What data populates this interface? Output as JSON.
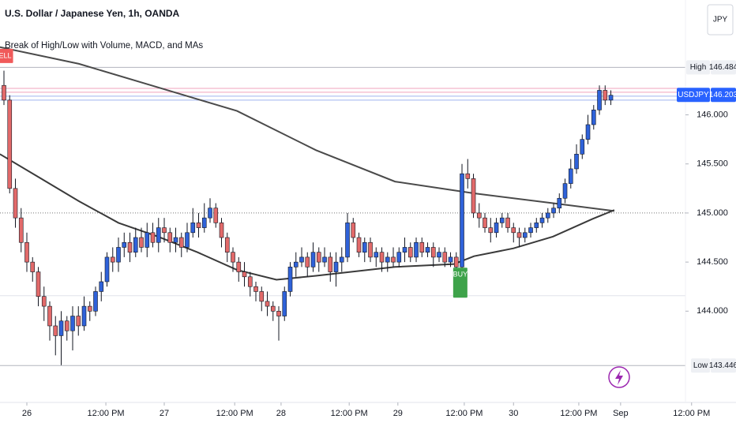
{
  "chart_data": {
    "type": "candlestick",
    "title": "U.S. Dollar / Japanese Yen, 1h, OANDA",
    "subtitle": "Break of High/Low with Volume, MACD, and MAs",
    "currency": "JPY",
    "up_color": "#2f62d9",
    "down_color": "#e26a6a",
    "x": [
      -4,
      -3,
      -2,
      -1,
      0,
      1,
      2,
      3,
      4,
      5,
      6,
      7,
      8,
      9,
      10,
      11,
      12,
      13,
      14,
      15,
      16,
      17,
      18,
      19,
      20,
      21,
      22,
      23,
      24,
      25,
      26,
      27,
      28,
      29,
      30,
      31,
      32,
      33,
      34,
      35,
      36,
      37,
      38,
      39,
      40,
      41,
      42,
      43,
      44,
      45,
      46,
      47,
      48,
      49,
      50,
      51,
      52,
      53,
      54,
      55,
      56,
      57,
      58,
      59,
      60,
      61,
      62,
      63,
      64,
      65,
      66,
      67,
      68,
      69,
      70,
      71,
      72,
      73,
      74,
      75,
      76,
      77,
      78,
      79,
      80,
      81,
      82,
      83,
      84,
      85,
      86,
      87,
      88,
      89,
      90,
      91,
      92,
      93,
      94,
      95,
      96,
      97,
      98,
      99,
      100,
      101,
      102
    ],
    "open": [
      146.3,
      146.15,
      145.25,
      144.95,
      144.7,
      144.5,
      144.4,
      144.15,
      144.05,
      143.85,
      143.75,
      143.9,
      143.8,
      143.95,
      143.85,
      144.05,
      144.0,
      144.2,
      144.3,
      144.55,
      144.5,
      144.65,
      144.7,
      144.6,
      144.75,
      144.65,
      144.8,
      144.7,
      144.85,
      144.8,
      144.7,
      144.75,
      144.65,
      144.8,
      144.9,
      144.85,
      144.95,
      145.05,
      144.9,
      144.75,
      144.6,
      144.5,
      144.4,
      144.35,
      144.25,
      144.2,
      144.1,
      144.05,
      144.0,
      143.95,
      144.2,
      144.45,
      144.5,
      144.55,
      144.45,
      144.6,
      144.5,
      144.55,
      144.4,
      144.5,
      144.55,
      144.9,
      144.75,
      144.6,
      144.7,
      144.55,
      144.6,
      144.5,
      144.55,
      144.5,
      144.6,
      144.65,
      144.55,
      144.7,
      144.6,
      144.65,
      144.55,
      144.6,
      144.5,
      144.55,
      144.45,
      145.4,
      145.35,
      145.0,
      144.95,
      144.85,
      144.8,
      144.9,
      144.95,
      144.85,
      144.8,
      144.75,
      144.8,
      144.85,
      144.9,
      144.95,
      145.0,
      145.05,
      145.15,
      145.3,
      145.45,
      145.6,
      145.75,
      145.9,
      146.05,
      146.25,
      146.15
    ],
    "high": [
      146.45,
      146.2,
      145.35,
      145.05,
      144.8,
      144.55,
      144.45,
      144.25,
      144.1,
      143.95,
      144.0,
      143.95,
      144.05,
      144.05,
      144.15,
      144.1,
      144.25,
      144.4,
      144.6,
      144.65,
      144.75,
      144.8,
      144.8,
      144.85,
      144.85,
      144.9,
      144.9,
      144.95,
      144.95,
      144.85,
      144.85,
      144.8,
      144.9,
      145.05,
      145.0,
      145.1,
      145.15,
      145.1,
      144.95,
      144.8,
      144.65,
      144.55,
      144.5,
      144.4,
      144.3,
      144.25,
      144.2,
      144.1,
      144.05,
      144.25,
      144.5,
      144.6,
      144.65,
      144.6,
      144.7,
      144.65,
      144.65,
      144.6,
      144.6,
      144.65,
      145.0,
      144.95,
      144.8,
      144.75,
      144.75,
      144.65,
      144.65,
      144.6,
      144.65,
      144.65,
      144.75,
      144.7,
      144.75,
      144.75,
      144.7,
      144.7,
      144.65,
      144.65,
      144.6,
      144.6,
      145.5,
      145.55,
      145.4,
      145.1,
      145.0,
      144.95,
      144.95,
      145.0,
      145.0,
      144.9,
      144.85,
      144.85,
      144.9,
      144.95,
      145.0,
      145.05,
      145.1,
      145.2,
      145.35,
      145.55,
      145.7,
      145.8,
      146.0,
      146.1,
      146.3,
      146.3,
      146.25
    ],
    "low": [
      146.1,
      145.2,
      144.85,
      144.6,
      144.4,
      144.3,
      144.05,
      143.9,
      143.7,
      143.55,
      143.45,
      143.7,
      143.6,
      143.75,
      143.8,
      143.9,
      143.95,
      144.1,
      144.25,
      144.4,
      144.4,
      144.55,
      144.5,
      144.55,
      144.6,
      144.55,
      144.65,
      144.6,
      144.7,
      144.6,
      144.6,
      144.55,
      144.6,
      144.75,
      144.75,
      144.8,
      144.9,
      144.85,
      144.65,
      144.5,
      144.4,
      144.3,
      144.25,
      144.15,
      144.1,
      144.0,
      143.95,
      143.9,
      143.7,
      143.9,
      144.15,
      144.35,
      144.45,
      144.35,
      144.4,
      144.4,
      144.45,
      144.3,
      144.25,
      144.4,
      144.5,
      144.7,
      144.55,
      144.5,
      144.5,
      144.45,
      144.4,
      144.4,
      144.45,
      144.45,
      144.5,
      144.5,
      144.5,
      144.55,
      144.55,
      144.45,
      144.5,
      144.45,
      144.45,
      144.35,
      144.4,
      145.25,
      144.95,
      144.85,
      144.8,
      144.7,
      144.75,
      144.85,
      144.8,
      144.7,
      144.65,
      144.7,
      144.75,
      144.8,
      144.85,
      144.9,
      144.95,
      145.0,
      145.1,
      145.25,
      145.4,
      145.55,
      145.7,
      145.85,
      146.0,
      146.1,
      146.1
    ],
    "close": [
      146.15,
      145.25,
      144.95,
      144.7,
      144.5,
      144.4,
      144.15,
      144.05,
      143.85,
      143.75,
      143.9,
      143.8,
      143.95,
      143.85,
      144.05,
      144.0,
      144.2,
      144.3,
      144.55,
      144.5,
      144.65,
      144.7,
      144.6,
      144.75,
      144.65,
      144.8,
      144.7,
      144.85,
      144.8,
      144.7,
      144.75,
      144.65,
      144.8,
      144.9,
      144.85,
      144.95,
      145.05,
      144.9,
      144.75,
      144.6,
      144.5,
      144.4,
      144.35,
      144.25,
      144.2,
      144.1,
      144.05,
      144.0,
      143.95,
      144.2,
      144.45,
      144.5,
      144.55,
      144.45,
      144.6,
      144.5,
      144.55,
      144.4,
      144.5,
      144.55,
      144.9,
      144.75,
      144.6,
      144.7,
      144.55,
      144.6,
      144.5,
      144.55,
      144.5,
      144.6,
      144.65,
      144.55,
      144.7,
      144.6,
      144.65,
      144.55,
      144.6,
      144.5,
      144.55,
      144.45,
      145.4,
      145.35,
      145.0,
      144.95,
      144.85,
      144.8,
      144.9,
      144.95,
      144.85,
      144.8,
      144.75,
      144.8,
      144.85,
      144.9,
      144.95,
      145.0,
      145.05,
      145.15,
      145.3,
      145.45,
      145.6,
      145.75,
      145.9,
      146.05,
      146.25,
      146.15,
      146.2
    ],
    "lines": [
      {
        "color": "#4a4a4a",
        "x": [
          -4.7,
          9.1,
          22.9,
          36.7,
          50.5,
          64.3,
          78.1,
          91.9,
          102.6
        ],
        "values": [
          146.69,
          146.52,
          146.28,
          146.04,
          145.64,
          145.32,
          145.2,
          145.1,
          145.02
        ]
      },
      {
        "color": "#3a3a3a",
        "x": [
          -4.7,
          2.2,
          9.1,
          16,
          22.9,
          29.8,
          36.7,
          43.6,
          50.5,
          64.3,
          74.6,
          78.1,
          85,
          91.9,
          98.8,
          102.6
        ],
        "values": [
          145.6,
          145.36,
          145.12,
          144.9,
          144.76,
          144.6,
          144.42,
          144.32,
          144.36,
          144.45,
          144.48,
          144.56,
          144.64,
          144.76,
          144.94,
          145.03
        ]
      }
    ],
    "hlines": [
      {
        "value": 146.484,
        "color": "#b2b5be",
        "style": "solid"
      },
      {
        "value": 146.27,
        "color": "#f0a3bd",
        "style": "solid"
      },
      {
        "value": 146.23,
        "color": "#f0a3bd",
        "style": "solid"
      },
      {
        "value": 146.19,
        "color": "#9fb3ef",
        "style": "solid"
      },
      {
        "value": 146.15,
        "color": "#9fb3ef",
        "style": "solid"
      },
      {
        "value": 145.0,
        "color": "#777777",
        "style": "dotted"
      },
      {
        "value": 144.157,
        "color": "#e0e3eb",
        "style": "solid"
      },
      {
        "value": 143.446,
        "color": "#b2b5be",
        "style": "solid"
      }
    ],
    "price_labels": [
      {
        "label": "High",
        "value": 146.484,
        "color": "#eef0f4",
        "text_color": "#131722"
      },
      {
        "label": "USDJPY",
        "value": 146.203,
        "color": "#2962ff",
        "text_color": "#ffffff"
      },
      {
        "label": "Low",
        "value": 143.446,
        "color": "#eef0f4",
        "text_color": "#131722"
      }
    ],
    "signals": [
      {
        "label": "SELL",
        "x": -4.2,
        "y": 146.6,
        "color": "#f05a5a"
      },
      {
        "label": "BUY",
        "x": 75.7,
        "y": 144.29,
        "color": "#3ea34a"
      }
    ],
    "xlim": [
      -4.69,
      115.03
    ],
    "xticks": [
      {
        "value": 0,
        "label": "26"
      },
      {
        "value": 13.8,
        "label": "12:00 PM"
      },
      {
        "value": 24,
        "label": "27"
      },
      {
        "value": 36.3,
        "label": "12:00 PM"
      },
      {
        "value": 44.4,
        "label": "28"
      },
      {
        "value": 56.3,
        "label": "12:00 PM"
      },
      {
        "value": 64.8,
        "label": "29"
      },
      {
        "value": 76.4,
        "label": "12:00 PM"
      },
      {
        "value": 85,
        "label": "30"
      },
      {
        "value": 96.4,
        "label": "12:00 PM"
      },
      {
        "value": 103.7,
        "label": "Sep"
      },
      {
        "value": 116.1,
        "label": "12:00 PM"
      }
    ],
    "ylim": [
      143.07,
      147.17
    ],
    "yticks": [
      {
        "value": 144,
        "label": "144.000"
      },
      {
        "value": 144.5,
        "label": "144.500"
      },
      {
        "value": 145,
        "label": "145.000"
      },
      {
        "value": 145.5,
        "label": "145.500"
      },
      {
        "value": 146,
        "label": "146.000"
      }
    ]
  }
}
